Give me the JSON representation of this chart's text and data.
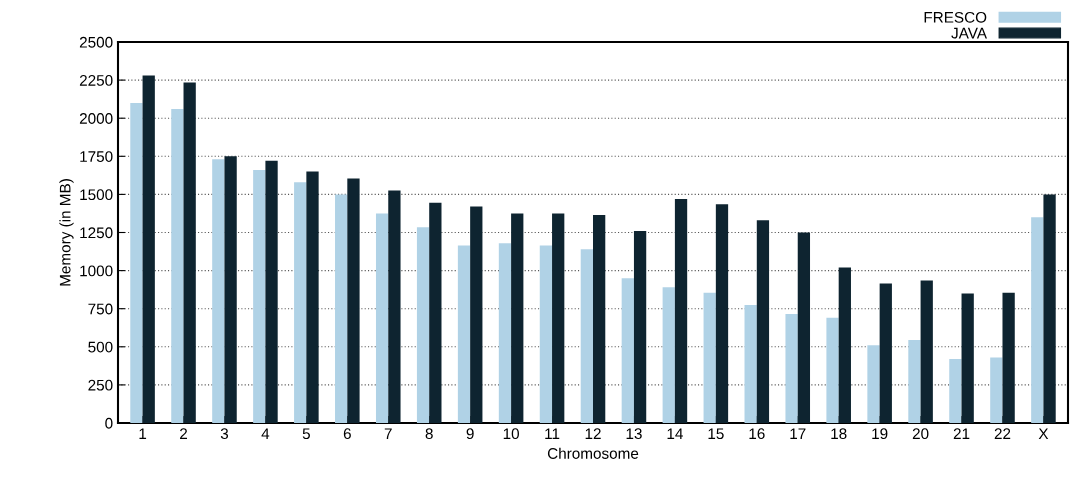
{
  "chart_data": {
    "type": "bar",
    "xlabel": "Chromosome",
    "ylabel": "Memory (in MB)",
    "categories": [
      "1",
      "2",
      "3",
      "4",
      "5",
      "6",
      "7",
      "8",
      "9",
      "10",
      "11",
      "12",
      "13",
      "14",
      "15",
      "16",
      "17",
      "18",
      "19",
      "20",
      "21",
      "22",
      "X"
    ],
    "series": [
      {
        "name": "FRESCO",
        "color": "#b0d2e6",
        "values": [
          2100,
          2060,
          1730,
          1660,
          1580,
          1500,
          1375,
          1285,
          1165,
          1180,
          1165,
          1140,
          950,
          890,
          855,
          775,
          715,
          690,
          510,
          545,
          420,
          430,
          1350
        ]
      },
      {
        "name": "JAVA",
        "color": "#0e2430",
        "values": [
          2280,
          2235,
          1750,
          1720,
          1650,
          1605,
          1525,
          1445,
          1420,
          1375,
          1375,
          1365,
          1260,
          1470,
          1435,
          1330,
          1250,
          1020,
          915,
          935,
          850,
          855,
          1500
        ]
      }
    ],
    "ylim": [
      0,
      2500
    ],
    "yticks": [
      0,
      250,
      500,
      750,
      1000,
      1250,
      1500,
      1750,
      2000,
      2250,
      2500
    ],
    "grid": "y",
    "legend": "top right"
  }
}
